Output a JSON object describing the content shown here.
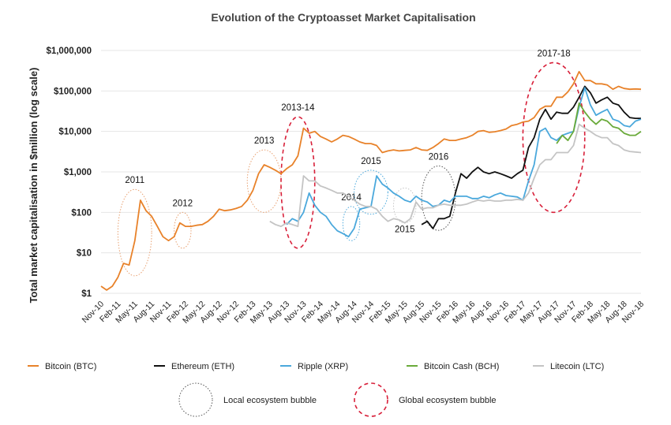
{
  "chart_data": {
    "type": "line",
    "title": "Evolution of the Cryptoasset Market Capitalisation",
    "ylabel": "Total market capitalisation in $million (log scale)",
    "xlabel": "",
    "y_scale": "log",
    "ylim": [
      1,
      1000000
    ],
    "y_ticks": [
      1,
      10,
      100,
      1000,
      10000,
      100000,
      1000000
    ],
    "y_tick_labels": [
      "$1",
      "$10",
      "$100",
      "$1,000",
      "$10,000",
      "$100,000",
      "$1,000,000"
    ],
    "xlim": [
      "2010-11",
      "2018-11"
    ],
    "x_tick_labels": [
      "Nov-10",
      "Feb-11",
      "May-11",
      "Aug-11",
      "Nov-11",
      "Feb-12",
      "May-12",
      "Aug-12",
      "Nov-12",
      "Feb-13",
      "May-13",
      "Aug-13",
      "Nov-13",
      "Feb-14",
      "May-14",
      "Aug-14",
      "Nov-14",
      "Feb-15",
      "May-15",
      "Aug-15",
      "Nov-15",
      "Feb-16",
      "May-16",
      "Aug-16",
      "Nov-16",
      "Feb-17",
      "May-17",
      "Aug-17",
      "Nov-17",
      "Feb-18",
      "May-18",
      "Aug-18",
      "Nov-18"
    ],
    "grid": "horizontal",
    "legend_placement": "bottom",
    "series": [
      {
        "name": "Bitcoin (BTC)",
        "color": "#e8822a",
        "start": "2010-11",
        "values": [
          1.5,
          1.2,
          1.5,
          2.5,
          5.5,
          5,
          20,
          200,
          110,
          80,
          45,
          25,
          20,
          25,
          55,
          45,
          45,
          48,
          50,
          60,
          80,
          120,
          110,
          115,
          125,
          140,
          200,
          350,
          900,
          1500,
          1300,
          1100,
          900,
          1200,
          1500,
          2500,
          12000,
          9000,
          10000,
          7500,
          6500,
          5500,
          6500,
          8000,
          7500,
          6500,
          5500,
          5000,
          5000,
          4500,
          3000,
          3300,
          3500,
          3300,
          3400,
          3500,
          4000,
          3500,
          3400,
          4000,
          5000,
          6500,
          6000,
          6000,
          6500,
          7000,
          8000,
          10000,
          10500,
          9500,
          9800,
          10500,
          11500,
          14000,
          15000,
          17000,
          18000,
          22000,
          35000,
          42000,
          42000,
          70000,
          70000,
          95000,
          150000,
          300000,
          180000,
          180000,
          150000,
          150000,
          140000,
          110000,
          130000,
          115000,
          110000,
          112000,
          110000
        ]
      },
      {
        "name": "Ethereum (ETH)",
        "color": "#111111",
        "start": "2015-08",
        "values": [
          50,
          60,
          40,
          70,
          70,
          80,
          300,
          900,
          700,
          1000,
          1300,
          1000,
          900,
          1000,
          900,
          800,
          700,
          900,
          1100,
          4000,
          7000,
          20000,
          35000,
          20000,
          30000,
          28000,
          28000,
          40000,
          70000,
          130000,
          90000,
          50000,
          60000,
          70000,
          50000,
          45000,
          30000,
          22000,
          21000,
          21000
        ]
      },
      {
        "name": "Ripple (XRP)",
        "color": "#4aa8dc",
        "start": "2013-08",
        "values": [
          50,
          70,
          60,
          100,
          300,
          150,
          100,
          80,
          50,
          35,
          30,
          25,
          40,
          120,
          130,
          140,
          800,
          500,
          400,
          300,
          250,
          200,
          180,
          250,
          200,
          180,
          140,
          150,
          200,
          180,
          250,
          250,
          250,
          220,
          220,
          250,
          230,
          270,
          300,
          260,
          250,
          240,
          200,
          600,
          1500,
          10000,
          12000,
          7000,
          6000,
          8000,
          9000,
          10000,
          40000,
          120000,
          45000,
          25000,
          30000,
          35000,
          20000,
          18000,
          14000,
          13000,
          18000,
          20000
        ]
      },
      {
        "name": "Bitcoin Cash (BCH)",
        "color": "#6aaa3a",
        "start": "2017-08",
        "values": [
          5000,
          8000,
          6000,
          10000,
          50000,
          30000,
          20000,
          15000,
          20000,
          18000,
          13000,
          12000,
          9000,
          8000,
          8000,
          10000
        ]
      },
      {
        "name": "Litecoin (LTC)",
        "color": "#c4c4c4",
        "start": "2013-05",
        "values": [
          60,
          50,
          45,
          55,
          50,
          45,
          800,
          600,
          600,
          450,
          400,
          350,
          300,
          300,
          250,
          200,
          160,
          140,
          140,
          120,
          80,
          60,
          70,
          65,
          55,
          70,
          180,
          120,
          130,
          130,
          150,
          160,
          150,
          150,
          150,
          160,
          180,
          200,
          190,
          200,
          190,
          190,
          200,
          200,
          210,
          200,
          300,
          700,
          1500,
          2000,
          2000,
          3000,
          3000,
          3000,
          4500,
          15000,
          12000,
          10000,
          8000,
          7000,
          7000,
          5000,
          4500,
          3500,
          3200,
          3100,
          3000
        ]
      }
    ],
    "annotations": [
      {
        "label": "2011",
        "type": "local",
        "color": "#e8a070",
        "from": "2011-02",
        "to": "2011-08",
        "ymin": 2.7,
        "ymax": 370
      },
      {
        "label": "2012",
        "type": "local",
        "color": "#e8a070",
        "from": "2011-12",
        "to": "2012-03",
        "ymin": 13,
        "ymax": 100
      },
      {
        "label": "2013",
        "type": "local",
        "color": "#e8a070",
        "from": "2013-01",
        "to": "2013-07",
        "ymin": 100,
        "ymax": 3500
      },
      {
        "label": "2013-14",
        "type": "global",
        "color": "#d8203a",
        "from": "2013-07",
        "to": "2014-01",
        "ymin": 13,
        "ymax": 23000
      },
      {
        "label": "2014",
        "type": "local",
        "color": "#4aa8dc",
        "from": "2014-06",
        "to": "2014-09",
        "ymin": 20,
        "ymax": 140
      },
      {
        "label": "2015",
        "type": "local",
        "color": "#4aa8dc",
        "from": "2014-08",
        "to": "2015-02",
        "ymin": 90,
        "ymax": 1100
      },
      {
        "label": "2015",
        "type": "local",
        "color": "#c4c4c4",
        "from": "2015-03",
        "to": "2015-07",
        "ymin": 55,
        "ymax": 400,
        "label_pos": "below"
      },
      {
        "label": "2016",
        "type": "local",
        "color": "#555555",
        "from": "2015-08",
        "to": "2016-02",
        "ymin": 36,
        "ymax": 1400
      },
      {
        "label": "2017-18",
        "type": "global",
        "color": "#d8203a",
        "from": "2017-02",
        "to": "2018-01",
        "ymin": 100,
        "ymax": 500000
      }
    ],
    "bubble_legend": [
      {
        "label": "Local ecosystem bubble",
        "color": "#555555",
        "style": "dotted"
      },
      {
        "label": "Global ecosystem bubble",
        "color": "#d8203a",
        "style": "dashed"
      }
    ]
  }
}
